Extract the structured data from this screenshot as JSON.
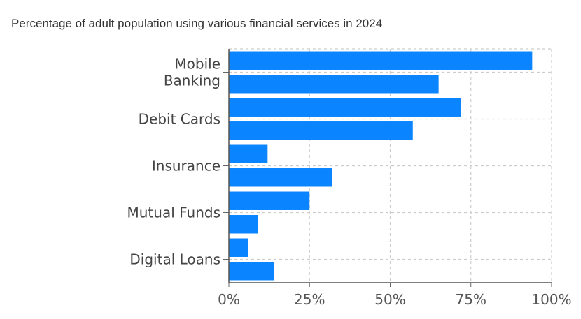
{
  "chart_data": {
    "type": "bar",
    "orientation": "horizontal",
    "title": "Percentage of adult population using various financial services in 2024",
    "category_labels": [
      "Mobile\nBanking",
      "Debit Cards",
      "Insurance",
      "Mutual Funds",
      "Digital Loans"
    ],
    "bars": [
      {
        "group": 0,
        "value": 94
      },
      {
        "group": 0,
        "value": 65
      },
      {
        "group": 1,
        "value": 72
      },
      {
        "group": 1,
        "value": 57
      },
      {
        "group": 2,
        "value": 12
      },
      {
        "group": 2,
        "value": 32
      },
      {
        "group": 3,
        "value": 25
      },
      {
        "group": 3,
        "value": 9
      },
      {
        "group": 4,
        "value": 6
      },
      {
        "group": 4,
        "value": 14
      }
    ],
    "xlim": [
      0,
      100
    ],
    "x_ticks": [
      "0%",
      "25%",
      "50%",
      "75%",
      "100%"
    ],
    "bar_color": "#0a84ff",
    "grid": true
  }
}
